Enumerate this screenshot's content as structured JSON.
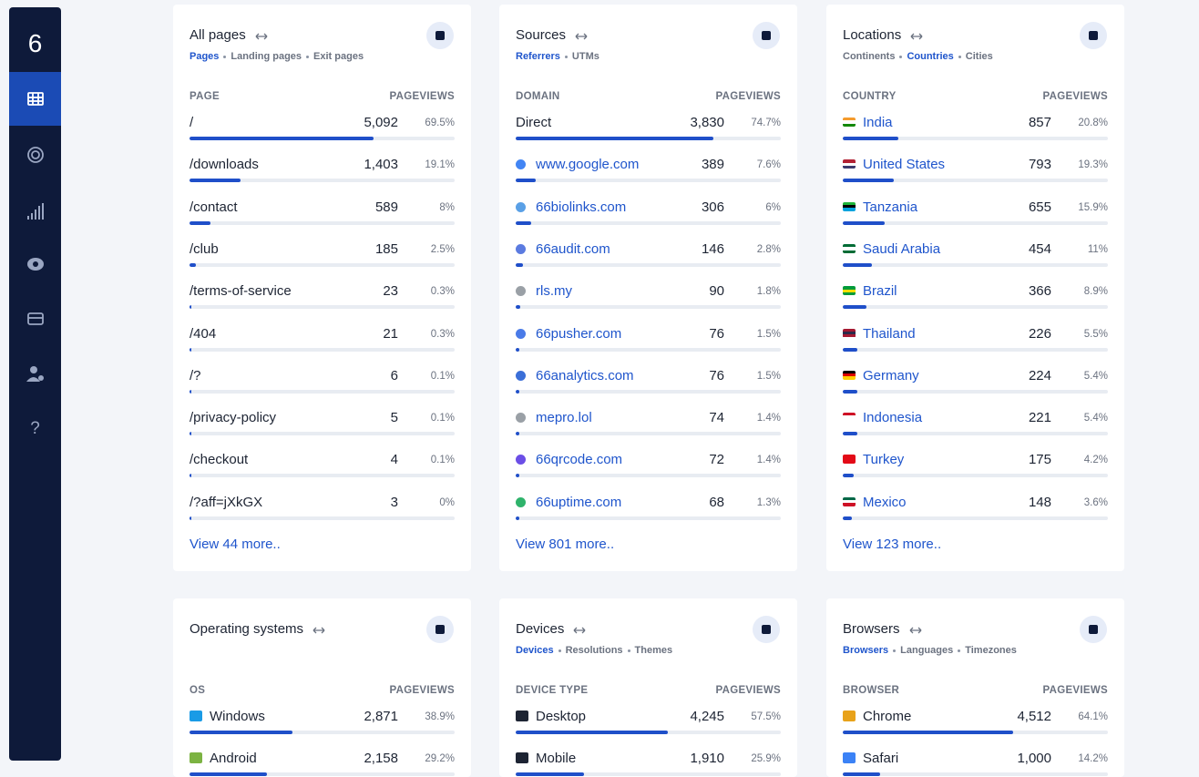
{
  "sidebar": {
    "logo": "6",
    "help": "?"
  },
  "cards": [
    {
      "title": "All pages",
      "tabs": [
        {
          "label": "Pages",
          "active": true
        },
        {
          "label": "Landing pages",
          "active": false
        },
        {
          "label": "Exit pages",
          "active": false
        }
      ],
      "column_label": "PAGE",
      "value_label": "PAGEVIEWS",
      "links": false,
      "rows": [
        {
          "label": "/",
          "views": "5,092",
          "percent": {
            "value": 69.5,
            "label": "69.5%"
          }
        },
        {
          "label": "/downloads",
          "views": "1,403",
          "percent": {
            "value": 19.1,
            "label": "19.1%"
          }
        },
        {
          "label": "/contact",
          "views": "589",
          "percent": {
            "value": 8,
            "label": "8%"
          }
        },
        {
          "label": "/club",
          "views": "185",
          "percent": {
            "value": 2.5,
            "label": "2.5%"
          }
        },
        {
          "label": "/terms-of-service",
          "views": "23",
          "percent": {
            "value": 0.3,
            "label": "0.3%"
          }
        },
        {
          "label": "/404",
          "views": "21",
          "percent": {
            "value": 0.3,
            "label": "0.3%"
          }
        },
        {
          "label": "/?",
          "views": "6",
          "percent": {
            "value": 0.1,
            "label": "0.1%"
          }
        },
        {
          "label": "/privacy-policy",
          "views": "5",
          "percent": {
            "value": 0.1,
            "label": "0.1%"
          }
        },
        {
          "label": "/checkout",
          "views": "4",
          "percent": {
            "value": 0.1,
            "label": "0.1%"
          }
        },
        {
          "label": "/?aff=jXkGX",
          "views": "3",
          "percent": {
            "value": 0,
            "label": "0%"
          }
        }
      ],
      "more": "View 44 more.."
    },
    {
      "title": "Sources",
      "tabs": [
        {
          "label": "Referrers",
          "active": true
        },
        {
          "label": "UTMs",
          "active": false
        }
      ],
      "column_label": "DOMAIN",
      "value_label": "PAGEVIEWS",
      "links": true,
      "rows": [
        {
          "label": "Direct",
          "views": "3,830",
          "percent": {
            "value": 74.7,
            "label": "74.7%"
          }
        },
        {
          "label": "www.google.com",
          "views": "389",
          "percent": {
            "value": 7.6,
            "label": "7.6%"
          }
        },
        {
          "label": "66biolinks.com",
          "views": "306",
          "percent": {
            "value": 6,
            "label": "6%"
          }
        },
        {
          "label": "66audit.com",
          "views": "146",
          "percent": {
            "value": 2.8,
            "label": "2.8%"
          }
        },
        {
          "label": "rls.my",
          "views": "90",
          "percent": {
            "value": 1.8,
            "label": "1.8%"
          }
        },
        {
          "label": "66pusher.com",
          "views": "76",
          "percent": {
            "value": 1.5,
            "label": "1.5%"
          }
        },
        {
          "label": "66analytics.com",
          "views": "76",
          "percent": {
            "value": 1.5,
            "label": "1.5%"
          }
        },
        {
          "label": "mepro.lol",
          "views": "74",
          "percent": {
            "value": 1.4,
            "label": "1.4%"
          }
        },
        {
          "label": "66qrcode.com",
          "views": "72",
          "percent": {
            "value": 1.4,
            "label": "1.4%"
          }
        },
        {
          "label": "66uptime.com",
          "views": "68",
          "percent": {
            "value": 1.3,
            "label": "1.3%"
          }
        }
      ],
      "more": "View 801 more.."
    },
    {
      "title": "Locations",
      "tabs": [
        {
          "label": "Continents",
          "active": false
        },
        {
          "label": "Countries",
          "active": true
        },
        {
          "label": "Cities",
          "active": false
        }
      ],
      "column_label": "COUNTRY",
      "value_label": "PAGEVIEWS",
      "links": true,
      "rows": [
        {
          "label": "India",
          "views": "857",
          "percent": {
            "value": 20.8,
            "label": "20.8%"
          }
        },
        {
          "label": "United States",
          "views": "793",
          "percent": {
            "value": 19.3,
            "label": "19.3%"
          }
        },
        {
          "label": "Tanzania",
          "views": "655",
          "percent": {
            "value": 15.9,
            "label": "15.9%"
          }
        },
        {
          "label": "Saudi Arabia",
          "views": "454",
          "percent": {
            "value": 11,
            "label": "11%"
          }
        },
        {
          "label": "Brazil",
          "views": "366",
          "percent": {
            "value": 8.9,
            "label": "8.9%"
          }
        },
        {
          "label": "Thailand",
          "views": "226",
          "percent": {
            "value": 5.5,
            "label": "5.5%"
          }
        },
        {
          "label": "Germany",
          "views": "224",
          "percent": {
            "value": 5.4,
            "label": "5.4%"
          }
        },
        {
          "label": "Indonesia",
          "views": "221",
          "percent": {
            "value": 5.4,
            "label": "5.4%"
          }
        },
        {
          "label": "Turkey",
          "views": "175",
          "percent": {
            "value": 4.2,
            "label": "4.2%"
          }
        },
        {
          "label": "Mexico",
          "views": "148",
          "percent": {
            "value": 3.6,
            "label": "3.6%"
          }
        }
      ],
      "more": "View 123 more.."
    },
    {
      "title": "Operating systems",
      "tabs": [],
      "column_label": "OS",
      "value_label": "PAGEVIEWS",
      "links": false,
      "rows": [
        {
          "label": "Windows",
          "views": "2,871",
          "percent": {
            "value": 38.9,
            "label": "38.9%"
          }
        },
        {
          "label": "Android",
          "views": "2,158",
          "percent": {
            "value": 29.2,
            "label": "29.2%"
          }
        }
      ]
    },
    {
      "title": "Devices",
      "tabs": [
        {
          "label": "Devices",
          "active": true
        },
        {
          "label": "Resolutions",
          "active": false
        },
        {
          "label": "Themes",
          "active": false
        }
      ],
      "column_label": "DEVICE TYPE",
      "value_label": "PAGEVIEWS",
      "links": false,
      "rows": [
        {
          "label": "Desktop",
          "views": "4,245",
          "percent": {
            "value": 57.5,
            "label": "57.5%"
          }
        },
        {
          "label": "Mobile",
          "views": "1,910",
          "percent": {
            "value": 25.9,
            "label": "25.9%"
          }
        }
      ]
    },
    {
      "title": "Browsers",
      "tabs": [
        {
          "label": "Browsers",
          "active": true
        },
        {
          "label": "Languages",
          "active": false
        },
        {
          "label": "Timezones",
          "active": false
        }
      ],
      "column_label": "BROWSER",
      "value_label": "PAGEVIEWS",
      "links": false,
      "rows": [
        {
          "label": "Chrome",
          "views": "4,512",
          "percent": {
            "value": 64.1,
            "label": "64.1%"
          }
        },
        {
          "label": "Safari",
          "views": "1,000",
          "percent": {
            "value": 14.2,
            "label": "14.2%"
          }
        }
      ]
    }
  ]
}
